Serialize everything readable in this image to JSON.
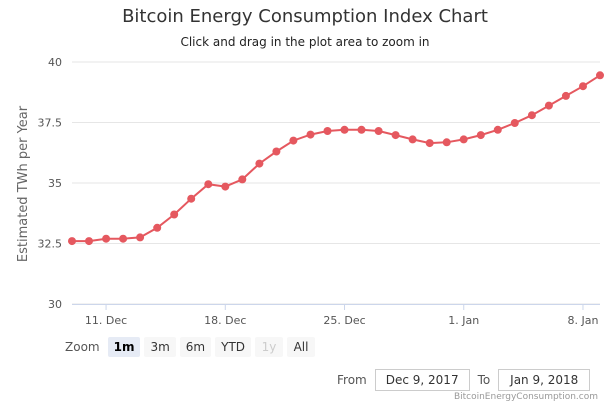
{
  "header": {
    "title": "Bitcoin Energy Consumption Index Chart",
    "subtitle": "Click and drag in the plot area to zoom in"
  },
  "range_selector": {
    "label": "Zoom",
    "buttons": [
      {
        "label": "1m",
        "state": "active"
      },
      {
        "label": "3m",
        "state": "normal"
      },
      {
        "label": "6m",
        "state": "normal"
      },
      {
        "label": "YTD",
        "state": "normal"
      },
      {
        "label": "1y",
        "state": "disabled"
      },
      {
        "label": "All",
        "state": "normal"
      }
    ]
  },
  "date_range": {
    "from_label": "From",
    "from_value": "Dec 9, 2017",
    "to_label": "To",
    "to_value": "Jan 9, 2018"
  },
  "credits": "BitcoinEnergyConsumption.com",
  "colors": {
    "series": "#e5585f",
    "gridline": "#e6e6e6"
  },
  "chart_data": {
    "type": "line",
    "title": "Bitcoin Energy Consumption Index Chart",
    "subtitle": "Click and drag in the plot area to zoom in",
    "ylabel": "Estimated TWh per Year",
    "xlabel": "",
    "ylim": [
      30,
      40
    ],
    "yticks": [
      30,
      32.5,
      35,
      37.5,
      40
    ],
    "ytick_labels": [
      "30",
      "32.5",
      "35",
      "37.5",
      "40"
    ],
    "xlim": [
      "2017-12-09",
      "2018-01-09"
    ],
    "xticks": [
      {
        "date": "2017-12-11",
        "label": "11. Dec"
      },
      {
        "date": "2017-12-18",
        "label": "18. Dec"
      },
      {
        "date": "2017-12-25",
        "label": "25. Dec"
      },
      {
        "date": "2018-01-01",
        "label": "1. Jan"
      },
      {
        "date": "2018-01-08",
        "label": "8. Jan"
      }
    ],
    "grid": true,
    "series": [
      {
        "x": [
          "2017-12-09",
          "2017-12-10",
          "2017-12-11",
          "2017-12-12",
          "2017-12-13",
          "2017-12-14",
          "2017-12-15",
          "2017-12-16",
          "2017-12-17",
          "2017-12-18",
          "2017-12-19",
          "2017-12-20",
          "2017-12-21",
          "2017-12-22",
          "2017-12-23",
          "2017-12-24",
          "2017-12-25",
          "2017-12-26",
          "2017-12-27",
          "2017-12-28",
          "2017-12-29",
          "2017-12-30",
          "2017-12-31",
          "2018-01-01",
          "2018-01-02",
          "2018-01-03",
          "2018-01-04",
          "2018-01-05",
          "2018-01-06",
          "2018-01-07",
          "2018-01-08",
          "2018-01-09"
        ],
        "values": [
          32.6,
          32.6,
          32.7,
          32.7,
          32.75,
          33.15,
          33.7,
          34.35,
          34.95,
          34.85,
          35.15,
          35.8,
          36.3,
          36.75,
          37.0,
          37.15,
          37.2,
          37.2,
          37.15,
          36.98,
          36.8,
          36.65,
          36.68,
          36.8,
          36.98,
          37.2,
          37.48,
          37.8,
          38.2,
          38.6,
          39.0,
          39.45
        ]
      }
    ]
  }
}
